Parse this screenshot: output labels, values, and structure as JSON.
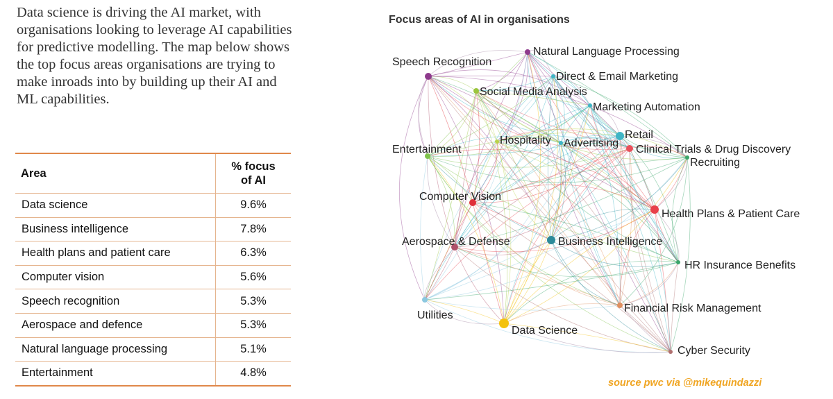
{
  "intro_text": "Data science is driving the AI market, with organisations looking to leverage AI capabilities for predictive modelling. The map below shows the top focus areas organisations are trying to make inroads into by building up their AI and ML capabilities.",
  "table": {
    "col_area": "Area",
    "col_pct_line1": "% focus",
    "col_pct_line2": "of AI",
    "rows": [
      {
        "area": "Data science",
        "pct": "9.6%"
      },
      {
        "area": "Business intelligence",
        "pct": "7.8%"
      },
      {
        "area": "Health plans and patient care",
        "pct": "6.3%"
      },
      {
        "area": "Computer vision",
        "pct": "5.6%"
      },
      {
        "area": "Speech recognition",
        "pct": "5.3%"
      },
      {
        "area": "Aerospace and defence",
        "pct": "5.3%"
      },
      {
        "area": "Natural language processing",
        "pct": "5.1%"
      },
      {
        "area": "Entertainment",
        "pct": "4.8%"
      }
    ]
  },
  "map": {
    "title": "Focus areas of AI in organisations",
    "nodes": [
      {
        "label": "Natural Language Processing",
        "color": "#8e3a8c"
      },
      {
        "label": "Speech Recognition",
        "color": "#8e3a8c"
      },
      {
        "label": "Direct & Email Marketing",
        "color": "#3fb5c5"
      },
      {
        "label": "Social Media Analysis",
        "color": "#9ac53d"
      },
      {
        "label": "Marketing Automation",
        "color": "#3fb5c5"
      },
      {
        "label": "Retail",
        "color": "#3fb5c5"
      },
      {
        "label": "Entertainment",
        "color": "#7fc34a"
      },
      {
        "label": "Hospitality",
        "color": "#b9d24a"
      },
      {
        "label": "Advertising",
        "color": "#3fb5c5"
      },
      {
        "label": "Clinical Trials & Drug Discovery",
        "color": "#e8505b"
      },
      {
        "label": "Recruiting",
        "color": "#3aa66a"
      },
      {
        "label": "Computer Vision",
        "color": "#e0303a"
      },
      {
        "label": "Health Plans & Patient Care",
        "color": "#e8404a"
      },
      {
        "label": "Aerospace & Defense",
        "color": "#b0506a"
      },
      {
        "label": "Business Intelligence",
        "color": "#2c8a9a"
      },
      {
        "label": "HR Insurance Benefits",
        "color": "#3aa66a"
      },
      {
        "label": "Utilities",
        "color": "#8cc8e0"
      },
      {
        "label": "Financial Risk Management",
        "color": "#e09060"
      },
      {
        "label": "Data Science",
        "color": "#f4c20d"
      },
      {
        "label": "Cyber Security",
        "color": "#b07070"
      }
    ]
  },
  "source": "source pwc via @mikequindazzi"
}
